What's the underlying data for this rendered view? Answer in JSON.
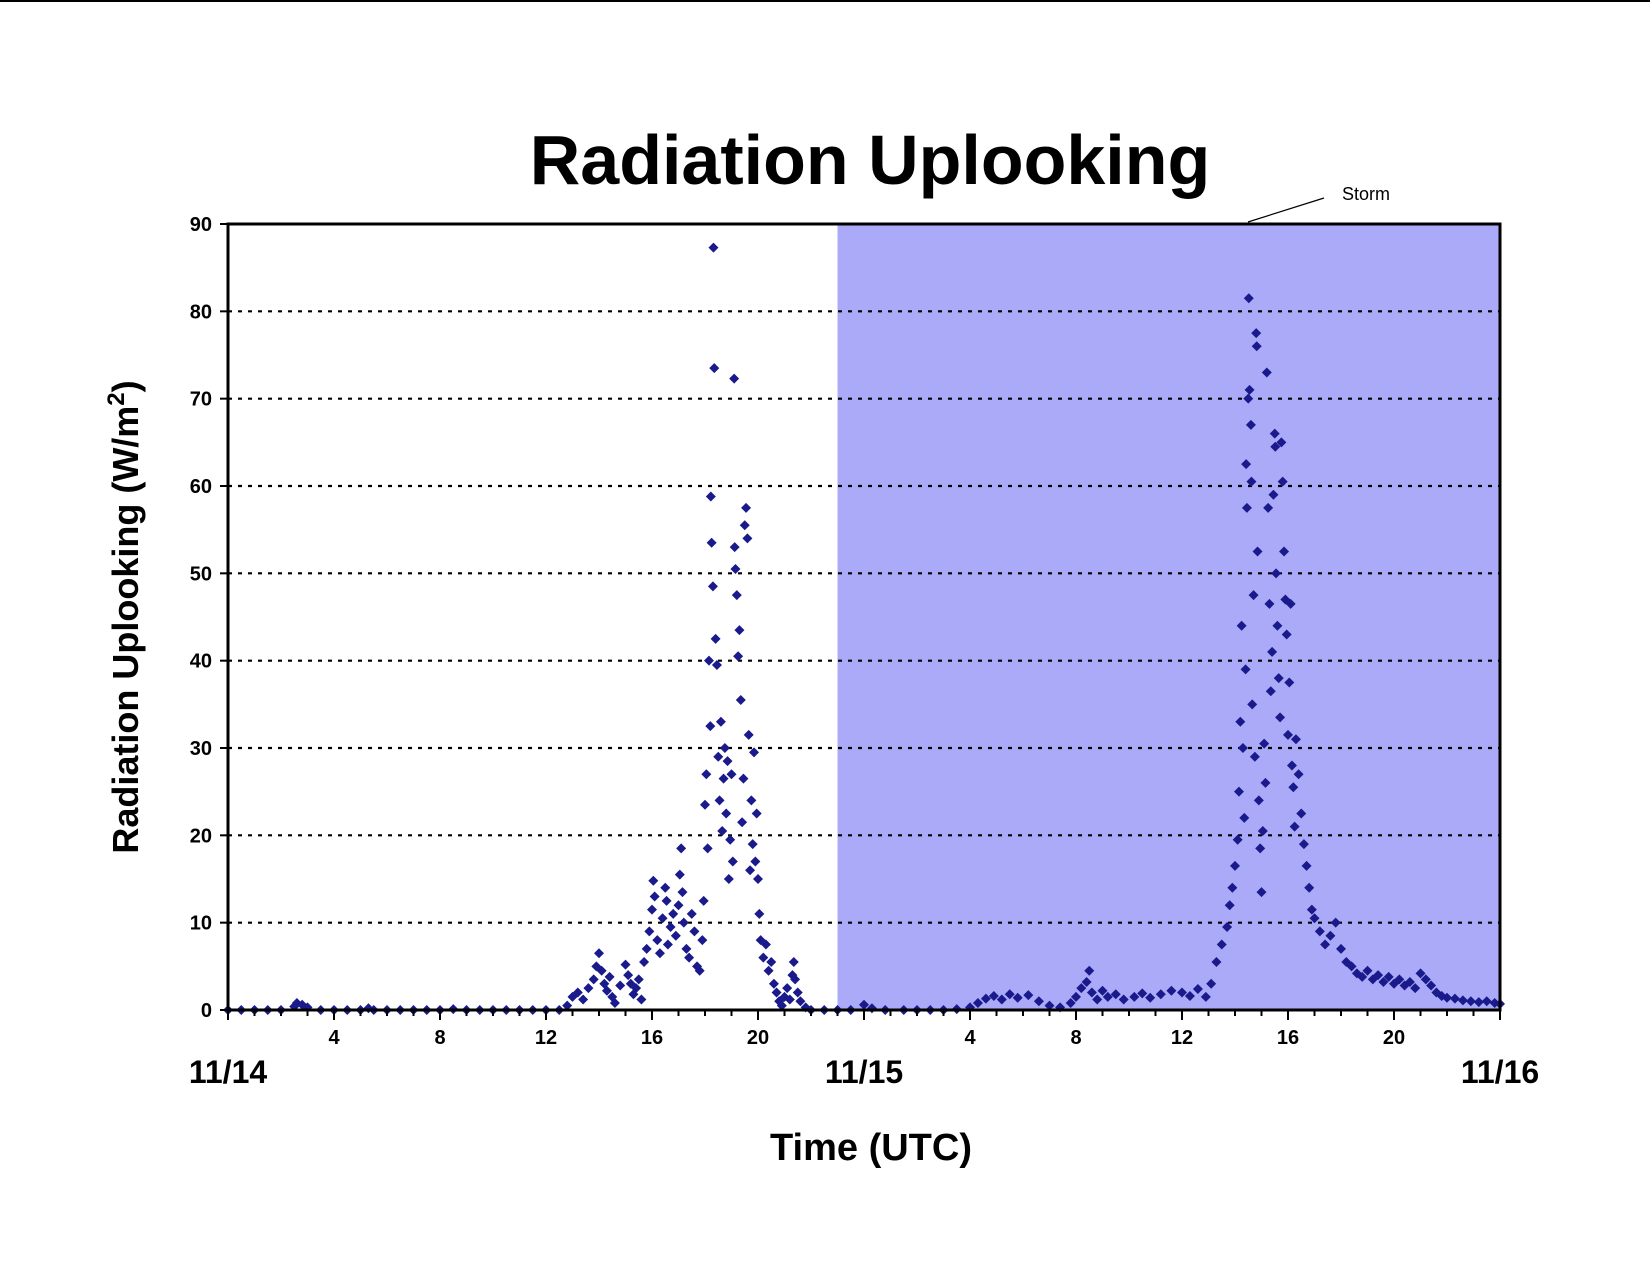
{
  "chart_data": {
    "type": "scatter",
    "title": "Radiation Uplooking",
    "xlabel": "Time (UTC)",
    "ylabel": "Radiation Uplooking (W/m",
    "ylabel_superscript": "2",
    "ylabel_suffix": ")",
    "ylim": [
      0,
      90
    ],
    "yticks": [
      "0",
      "10",
      "20",
      "30",
      "40",
      "50",
      "60",
      "70",
      "80",
      "90"
    ],
    "xlim_hours": [
      0,
      48
    ],
    "xticks_hour_labels": [
      {
        "hour": 4,
        "label": "4"
      },
      {
        "hour": 8,
        "label": "8"
      },
      {
        "hour": 12,
        "label": "12"
      },
      {
        "hour": 16,
        "label": "16"
      },
      {
        "hour": 20,
        "label": "20"
      },
      {
        "hour": 28,
        "label": "4"
      },
      {
        "hour": 32,
        "label": "8"
      },
      {
        "hour": 36,
        "label": "12"
      },
      {
        "hour": 40,
        "label": "16"
      },
      {
        "hour": 44,
        "label": "20"
      }
    ],
    "date_labels": [
      {
        "hour": 0,
        "label": "11/14"
      },
      {
        "hour": 24,
        "label": "11/15"
      },
      {
        "hour": 48,
        "label": "11/16"
      }
    ],
    "grid": "horizontal dotted",
    "legend": "none",
    "marker_color": "#1a1a8c",
    "shaded_region": {
      "start_hour": 23,
      "end_hour": 48,
      "color": "#aaaaf8",
      "label": "Storm"
    },
    "series": [
      {
        "points": [
          [
            0.0,
            0
          ],
          [
            0.5,
            0
          ],
          [
            1.0,
            0
          ],
          [
            1.5,
            0
          ],
          [
            2.0,
            0
          ],
          [
            2.5,
            0.4
          ],
          [
            2.6,
            0.8
          ],
          [
            2.8,
            0.6
          ],
          [
            3.0,
            0.3
          ],
          [
            3.5,
            0
          ],
          [
            4.0,
            0
          ],
          [
            4.5,
            0
          ],
          [
            5.0,
            0
          ],
          [
            5.3,
            0.2
          ],
          [
            5.5,
            0
          ],
          [
            6.0,
            0
          ],
          [
            6.5,
            0
          ],
          [
            7.0,
            0
          ],
          [
            7.5,
            0
          ],
          [
            8.0,
            0
          ],
          [
            8.5,
            0.1
          ],
          [
            9.0,
            0
          ],
          [
            9.5,
            0
          ],
          [
            10.0,
            0
          ],
          [
            10.5,
            0
          ],
          [
            11.0,
            0
          ],
          [
            11.5,
            0
          ],
          [
            12.0,
            0
          ],
          [
            12.5,
            0
          ],
          [
            12.8,
            0.5
          ],
          [
            13.0,
            1.5
          ],
          [
            13.2,
            2.0
          ],
          [
            13.4,
            1.2
          ],
          [
            13.6,
            2.5
          ],
          [
            13.8,
            3.5
          ],
          [
            13.9,
            5.0
          ],
          [
            14.0,
            6.5
          ],
          [
            14.1,
            4.5
          ],
          [
            14.2,
            3.0
          ],
          [
            14.3,
            2.2
          ],
          [
            14.4,
            3.8
          ],
          [
            14.5,
            1.5
          ],
          [
            14.6,
            0.8
          ],
          [
            14.8,
            2.8
          ],
          [
            15.0,
            5.2
          ],
          [
            15.1,
            4.0
          ],
          [
            15.2,
            3.0
          ],
          [
            15.3,
            1.8
          ],
          [
            15.4,
            2.5
          ],
          [
            15.5,
            3.5
          ],
          [
            15.6,
            1.2
          ],
          [
            15.7,
            5.5
          ],
          [
            15.8,
            7.0
          ],
          [
            15.9,
            9.0
          ],
          [
            16.0,
            11.5
          ],
          [
            16.05,
            14.8
          ],
          [
            16.1,
            13.0
          ],
          [
            16.2,
            8.0
          ],
          [
            16.3,
            6.5
          ],
          [
            16.4,
            10.5
          ],
          [
            16.5,
            14.0
          ],
          [
            16.55,
            12.5
          ],
          [
            16.6,
            7.5
          ],
          [
            16.7,
            9.5
          ],
          [
            16.8,
            11.0
          ],
          [
            16.9,
            8.5
          ],
          [
            17.0,
            12.0
          ],
          [
            17.05,
            15.5
          ],
          [
            17.1,
            18.5
          ],
          [
            17.15,
            13.5
          ],
          [
            17.2,
            10.0
          ],
          [
            17.3,
            7.0
          ],
          [
            17.4,
            6.0
          ],
          [
            17.5,
            11.0
          ],
          [
            17.6,
            9.0
          ],
          [
            17.7,
            5.0
          ],
          [
            17.8,
            4.5
          ],
          [
            17.9,
            8.0
          ],
          [
            17.95,
            12.5
          ],
          [
            18.0,
            23.5
          ],
          [
            18.05,
            27.0
          ],
          [
            18.1,
            18.5
          ],
          [
            18.15,
            40.0
          ],
          [
            18.2,
            32.5
          ],
          [
            18.22,
            58.8
          ],
          [
            18.25,
            53.5
          ],
          [
            18.3,
            48.5
          ],
          [
            18.32,
            87.3
          ],
          [
            18.35,
            73.5
          ],
          [
            18.4,
            42.5
          ],
          [
            18.45,
            39.5
          ],
          [
            18.5,
            29.0
          ],
          [
            18.55,
            24.0
          ],
          [
            18.6,
            33.0
          ],
          [
            18.65,
            20.5
          ],
          [
            18.7,
            26.5
          ],
          [
            18.75,
            30.0
          ],
          [
            18.8,
            22.5
          ],
          [
            18.85,
            28.5
          ],
          [
            18.9,
            15.0
          ],
          [
            18.95,
            19.5
          ],
          [
            19.0,
            27.0
          ],
          [
            19.05,
            17.0
          ],
          [
            19.1,
            72.3
          ],
          [
            19.12,
            53.0
          ],
          [
            19.15,
            50.5
          ],
          [
            19.2,
            47.5
          ],
          [
            19.25,
            40.5
          ],
          [
            19.3,
            43.5
          ],
          [
            19.35,
            35.5
          ],
          [
            19.4,
            21.5
          ],
          [
            19.45,
            26.5
          ],
          [
            19.5,
            55.5
          ],
          [
            19.55,
            57.5
          ],
          [
            19.6,
            54.0
          ],
          [
            19.65,
            31.5
          ],
          [
            19.7,
            16.0
          ],
          [
            19.75,
            24.0
          ],
          [
            19.8,
            19.0
          ],
          [
            19.85,
            29.5
          ],
          [
            19.9,
            17.0
          ],
          [
            19.95,
            22.5
          ],
          [
            20.0,
            15.0
          ],
          [
            20.05,
            11.0
          ],
          [
            20.1,
            8.0
          ],
          [
            20.2,
            6.0
          ],
          [
            20.3,
            7.5
          ],
          [
            20.4,
            4.5
          ],
          [
            20.5,
            5.5
          ],
          [
            20.6,
            3.0
          ],
          [
            20.7,
            2.0
          ],
          [
            20.8,
            1.0
          ],
          [
            20.9,
            0.5
          ],
          [
            21.0,
            1.5
          ],
          [
            21.1,
            2.5
          ],
          [
            21.2,
            1.2
          ],
          [
            21.3,
            4.0
          ],
          [
            21.35,
            5.5
          ],
          [
            21.4,
            3.5
          ],
          [
            21.5,
            2.0
          ],
          [
            21.6,
            1.0
          ],
          [
            21.8,
            0.3
          ],
          [
            22.0,
            0
          ],
          [
            22.5,
            0
          ],
          [
            23.0,
            0
          ],
          [
            23.5,
            0
          ],
          [
            24.0,
            0.6
          ],
          [
            24.3,
            0.2
          ],
          [
            24.8,
            0
          ],
          [
            25.5,
            0
          ],
          [
            26.0,
            0
          ],
          [
            26.5,
            0
          ],
          [
            27.0,
            0
          ],
          [
            27.5,
            0.1
          ],
          [
            28.0,
            0.3
          ],
          [
            28.3,
            0.8
          ],
          [
            28.6,
            1.3
          ],
          [
            28.9,
            1.6
          ],
          [
            29.2,
            1.2
          ],
          [
            29.5,
            1.8
          ],
          [
            29.8,
            1.4
          ],
          [
            30.2,
            1.7
          ],
          [
            30.6,
            1.0
          ],
          [
            31.0,
            0.5
          ],
          [
            31.4,
            0.3
          ],
          [
            31.8,
            0.8
          ],
          [
            32.0,
            1.5
          ],
          [
            32.2,
            2.5
          ],
          [
            32.4,
            3.2
          ],
          [
            32.5,
            4.5
          ],
          [
            32.6,
            2.0
          ],
          [
            32.8,
            1.2
          ],
          [
            33.0,
            2.2
          ],
          [
            33.2,
            1.5
          ],
          [
            33.5,
            1.8
          ],
          [
            33.8,
            1.2
          ],
          [
            34.2,
            1.5
          ],
          [
            34.5,
            1.9
          ],
          [
            34.8,
            1.4
          ],
          [
            35.2,
            1.8
          ],
          [
            35.6,
            2.2
          ],
          [
            36.0,
            2.0
          ],
          [
            36.3,
            1.6
          ],
          [
            36.6,
            2.4
          ],
          [
            36.9,
            1.5
          ],
          [
            37.1,
            3.0
          ],
          [
            37.3,
            5.5
          ],
          [
            37.5,
            7.5
          ],
          [
            37.7,
            9.5
          ],
          [
            37.8,
            12.0
          ],
          [
            37.9,
            14.0
          ],
          [
            38.0,
            16.5
          ],
          [
            38.1,
            19.5
          ],
          [
            38.15,
            25.0
          ],
          [
            38.2,
            33.0
          ],
          [
            38.25,
            44.0
          ],
          [
            38.3,
            30.0
          ],
          [
            38.35,
            22.0
          ],
          [
            38.4,
            39.0
          ],
          [
            38.42,
            62.5
          ],
          [
            38.45,
            57.5
          ],
          [
            38.5,
            70.0
          ],
          [
            38.52,
            81.5
          ],
          [
            38.55,
            71.0
          ],
          [
            38.6,
            67.0
          ],
          [
            38.62,
            60.5
          ],
          [
            38.65,
            35.0
          ],
          [
            38.7,
            47.5
          ],
          [
            38.75,
            29.0
          ],
          [
            38.8,
            77.5
          ],
          [
            38.82,
            76.0
          ],
          [
            38.85,
            52.5
          ],
          [
            38.9,
            24.0
          ],
          [
            38.95,
            18.5
          ],
          [
            39.0,
            13.5
          ],
          [
            39.05,
            20.5
          ],
          [
            39.1,
            30.5
          ],
          [
            39.15,
            26.0
          ],
          [
            39.2,
            73.0
          ],
          [
            39.25,
            57.5
          ],
          [
            39.3,
            46.5
          ],
          [
            39.35,
            36.5
          ],
          [
            39.4,
            41.0
          ],
          [
            39.45,
            59.0
          ],
          [
            39.5,
            66.0
          ],
          [
            39.52,
            64.5
          ],
          [
            39.55,
            50.0
          ],
          [
            39.6,
            44.0
          ],
          [
            39.65,
            38.0
          ],
          [
            39.7,
            33.5
          ],
          [
            39.75,
            65.0
          ],
          [
            39.8,
            60.5
          ],
          [
            39.85,
            52.5
          ],
          [
            39.9,
            47.0
          ],
          [
            39.95,
            43.0
          ],
          [
            40.0,
            31.5
          ],
          [
            40.05,
            37.5
          ],
          [
            40.1,
            46.5
          ],
          [
            40.15,
            28.0
          ],
          [
            40.2,
            25.5
          ],
          [
            40.25,
            21.0
          ],
          [
            40.3,
            31.0
          ],
          [
            40.4,
            27.0
          ],
          [
            40.5,
            22.5
          ],
          [
            40.6,
            19.0
          ],
          [
            40.7,
            16.5
          ],
          [
            40.8,
            14.0
          ],
          [
            40.9,
            11.5
          ],
          [
            41.0,
            10.5
          ],
          [
            41.2,
            9.0
          ],
          [
            41.4,
            7.5
          ],
          [
            41.6,
            8.5
          ],
          [
            41.8,
            10.0
          ],
          [
            42.0,
            7.0
          ],
          [
            42.2,
            5.5
          ],
          [
            42.4,
            5.0
          ],
          [
            42.6,
            4.2
          ],
          [
            42.8,
            3.8
          ],
          [
            43.0,
            4.5
          ],
          [
            43.2,
            3.5
          ],
          [
            43.4,
            4.0
          ],
          [
            43.6,
            3.2
          ],
          [
            43.8,
            3.8
          ],
          [
            44.0,
            3.0
          ],
          [
            44.2,
            3.5
          ],
          [
            44.4,
            2.8
          ],
          [
            44.6,
            3.2
          ],
          [
            44.8,
            2.5
          ],
          [
            45.0,
            4.2
          ],
          [
            45.2,
            3.5
          ],
          [
            45.4,
            2.8
          ],
          [
            45.6,
            2.0
          ],
          [
            45.8,
            1.6
          ],
          [
            46.0,
            1.4
          ],
          [
            46.3,
            1.3
          ],
          [
            46.6,
            1.1
          ],
          [
            46.9,
            1.0
          ],
          [
            47.2,
            0.9
          ],
          [
            47.5,
            1.0
          ],
          [
            47.8,
            0.8
          ],
          [
            48.0,
            0.7
          ]
        ]
      }
    ]
  }
}
